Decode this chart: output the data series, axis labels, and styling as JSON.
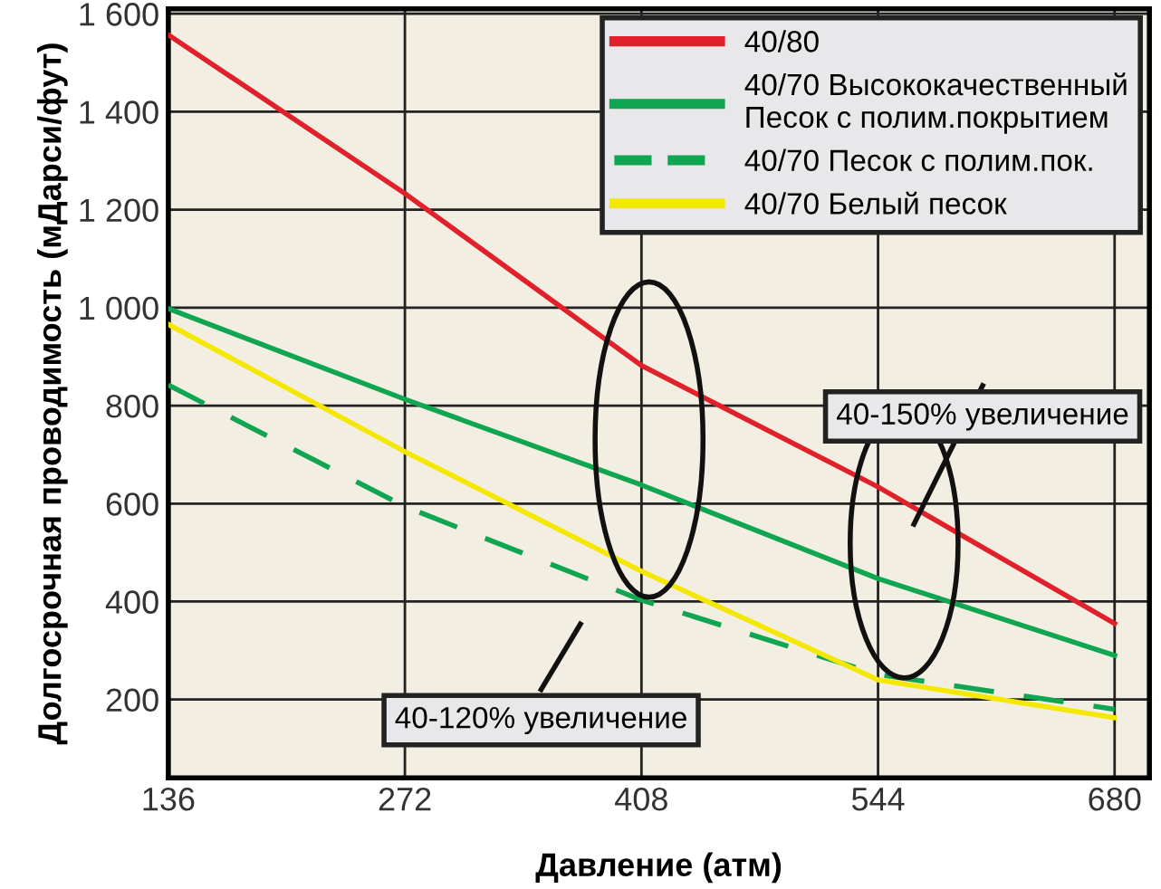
{
  "chart_data": {
    "type": "line",
    "xlabel": "Давление (атм)",
    "ylabel": "Долгосрочная проводимость (мДарси/фут)",
    "x": [
      136,
      272,
      408,
      544,
      680
    ],
    "series": [
      {
        "name": "40/80",
        "color": "#e0202a",
        "values": [
          1557,
          1233,
          882,
          634,
          355
        ]
      },
      {
        "name": "40/70 Высококачественный\nПесок с полим.покрытием",
        "color": "#10a550",
        "values": [
          998,
          813,
          638,
          447,
          290
        ]
      },
      {
        "name": "40/70 Песок с полим.пок.",
        "color": "#10a550",
        "line_style": "dashed",
        "values": [
          842,
          594,
          403,
          251,
          180
        ]
      },
      {
        "name": "40/70 Белый песок",
        "color": "#f5e800",
        "values": [
          966,
          706,
          462,
          240,
          163
        ]
      }
    ],
    "xlim": [
      136,
      700
    ],
    "xticks": [
      136,
      272,
      408,
      544,
      680
    ],
    "ylim": [
      40,
      1610
    ],
    "yticks": [
      200,
      400,
      600,
      800,
      {
        "value": 1000,
        "label": "1 000"
      },
      {
        "value": 1200,
        "label": "1 200"
      },
      {
        "value": 1400,
        "label": "1 400"
      },
      {
        "value": 1600,
        "label": "1 600"
      }
    ],
    "grid": true,
    "legend": "top right",
    "line_style": "solid",
    "marker": "none",
    "annotations": [
      "40-120% увеличение",
      "40-150% увеличение"
    ]
  }
}
